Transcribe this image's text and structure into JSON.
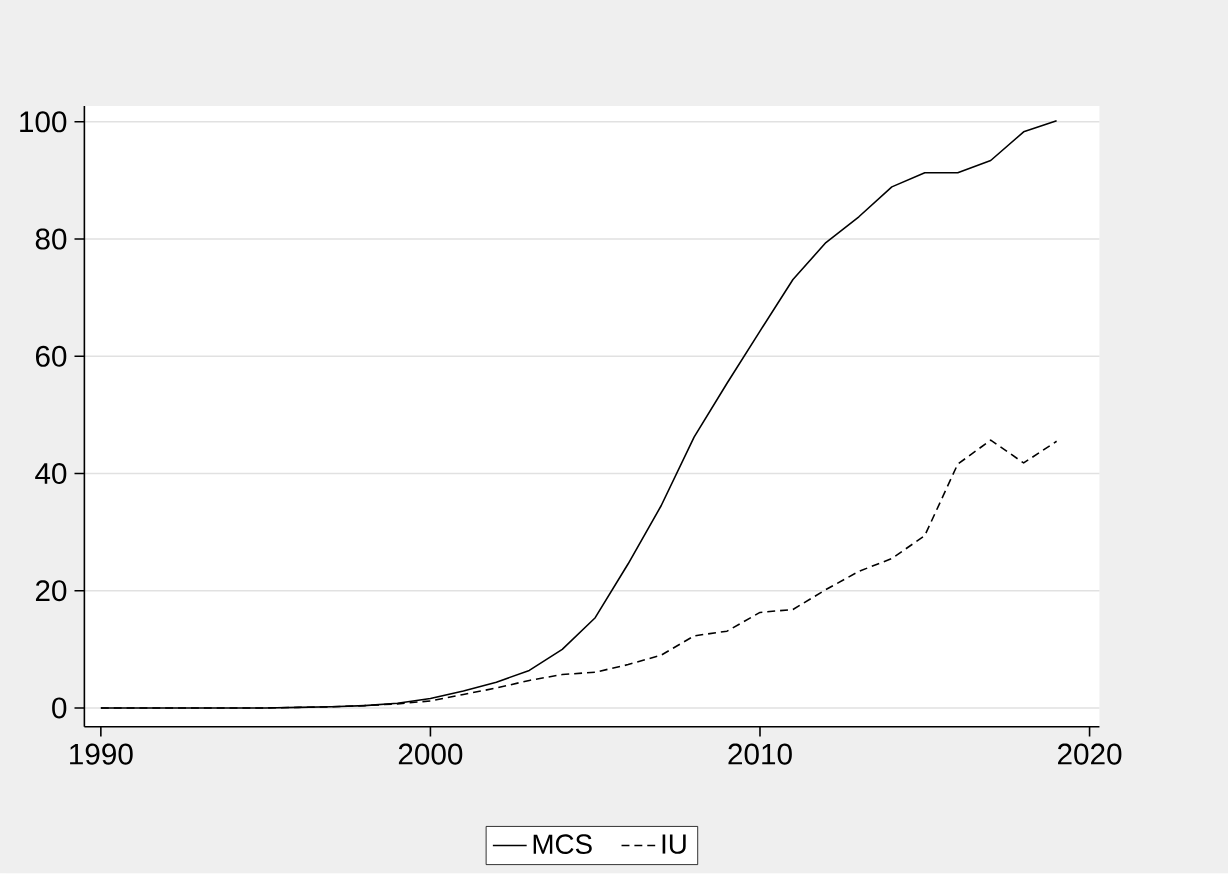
{
  "chart_data": {
    "type": "line",
    "x": [
      1990,
      1991,
      1992,
      1993,
      1994,
      1995,
      1996,
      1997,
      1998,
      1999,
      2000,
      2001,
      2002,
      2003,
      2004,
      2005,
      2006,
      2007,
      2008,
      2009,
      2010,
      2011,
      2012,
      2013,
      2014,
      2015,
      2016,
      2017,
      2018,
      2019
    ],
    "series": [
      {
        "name": "MCS",
        "color": "#000000",
        "line_style": "solid",
        "values": [
          0,
          0,
          0,
          0,
          0,
          0,
          0.1,
          0.2,
          0.4,
          0.8,
          1.6,
          2.9,
          4.4,
          6.4,
          10,
          15.4,
          24.6,
          34.5,
          46.2,
          55.4,
          64.3,
          73.1,
          79.4,
          83.8,
          88.9,
          91.3,
          91.3,
          93.4,
          98.3,
          100.2
        ]
      },
      {
        "name": "IU",
        "color": "#000000",
        "line_style": "dashed",
        "values": [
          0,
          0,
          0,
          0,
          0,
          0,
          0.1,
          0.2,
          0.4,
          0.7,
          1.2,
          2.3,
          3.4,
          4.7,
          5.7,
          6.1,
          7.4,
          9.0,
          12.3,
          13.1,
          16.3,
          16.8,
          20.2,
          23.3,
          25.5,
          29.4,
          41.6,
          45.7,
          41.8,
          45.5
        ]
      }
    ],
    "xlim": [
      1989.5,
      2020.3
    ],
    "ylim": [
      -3.2,
      102.7
    ],
    "xticks": [
      1990,
      2000,
      2010,
      2020
    ],
    "yticks": [
      0,
      20,
      40,
      60,
      80,
      100
    ],
    "grid": "y",
    "legend": "bottom",
    "marker": "none"
  }
}
